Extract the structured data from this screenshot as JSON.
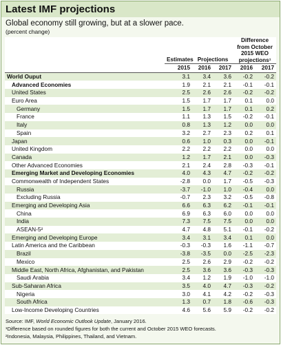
{
  "header": {
    "title": "Latest IMF projections",
    "subtitle": "Global economy still growing, but at a slower pace.",
    "note": "(percent change)"
  },
  "table": {
    "group_headers": [
      "Estimates",
      "Projections",
      "Difference from October 2015 WEO projections¹"
    ],
    "columns": [
      "2015",
      "2016",
      "2017",
      "2016",
      "2017"
    ],
    "rows": [
      [
        "World Ouput",
        "3.1",
        "3.4",
        "3.6",
        "-0.2",
        "-0.2"
      ],
      [
        "Advanced Economies",
        "1.9",
        "2.1",
        "2.1",
        "-0.1",
        "-0.1"
      ],
      [
        "United States",
        "2.5",
        "2.6",
        "2.6",
        "-0.2",
        "-0.2"
      ],
      [
        "Euro Area",
        "1.5",
        "1.7",
        "1.7",
        "0.1",
        "0.0"
      ],
      [
        "Germany",
        "1.5",
        "1.7",
        "1.7",
        "0.1",
        "0.2"
      ],
      [
        "France",
        "1.1",
        "1.3",
        "1.5",
        "-0.2",
        "-0.1"
      ],
      [
        "Italy",
        "0.8",
        "1.3",
        "1.2",
        "0.0",
        "0.0"
      ],
      [
        "Spain",
        "3.2",
        "2.7",
        "2.3",
        "0.2",
        "0.1"
      ],
      [
        "Japan",
        "0.6",
        "1.0",
        "0.3",
        "0.0",
        "-0.1"
      ],
      [
        "United Kingdom",
        "2.2",
        "2.2",
        "2.2",
        "0.0",
        "0.0"
      ],
      [
        "Canada",
        "1.2",
        "1.7",
        "2.1",
        "0.0",
        "-0.3"
      ],
      [
        "Other Advanced Economies",
        "2.1",
        "2.4",
        "2.8",
        "-0.3",
        "-0.1"
      ],
      [
        "Emerging Market and Developing Economies",
        "4.0",
        "4.3",
        "4.7",
        "-0.2",
        "-0.2"
      ],
      [
        "Commonwealth of Independent States",
        "-2.8",
        "0.0",
        "1.7",
        "-0.5",
        "-0.3"
      ],
      [
        "Russia",
        "-3.7",
        "-1.0",
        "1.0",
        "-0.4",
        "0.0"
      ],
      [
        "Excluding Russia",
        "-0.7",
        "2.3",
        "3.2",
        "-0.5",
        "-0.8"
      ],
      [
        "Emerging and Developing Asia",
        "6.6",
        "6.3",
        "6.2",
        "-0.1",
        "-0.1"
      ],
      [
        "China",
        "6.9",
        "6.3",
        "6.0",
        "0.0",
        "0.0"
      ],
      [
        "India",
        "7.3",
        "7.5",
        "7.5",
        "0.0",
        "0.0"
      ],
      [
        "ASEAN-5²",
        "4.7",
        "4.8",
        "5.1",
        "-0.1",
        "-0.2"
      ],
      [
        "Emerging and Developing Europe",
        "3.4",
        "3.1",
        "3.4",
        "0.1",
        "0.0"
      ],
      [
        "Latin America and the Caribbean",
        "-0.3",
        "-0.3",
        "1.6",
        "-1.1",
        "-0.7"
      ],
      [
        "Brazil",
        "-3.8",
        "-3.5",
        "0.0",
        "-2.5",
        "-2.3"
      ],
      [
        "Mexico",
        "2.5",
        "2.6",
        "2.9",
        "-0.2",
        "-0.2"
      ],
      [
        "Middle East, North Africa, Afghanistan, and Pakistan",
        "2.5",
        "3.6",
        "3.6",
        "-0.3",
        "-0.3"
      ],
      [
        "Saudi Arabia",
        "3.4",
        "1.2",
        "1.9",
        "-1.0",
        "-1.0"
      ],
      [
        "Sub-Saharan Africa",
        "3.5",
        "4.0",
        "4.7",
        "-0.3",
        "-0.2"
      ],
      [
        "Nigeria",
        "3.0",
        "4.1",
        "4.2",
        "-0.2",
        "-0.3"
      ],
      [
        "South Africa",
        "1.3",
        "0.7",
        "1.8",
        "-0.6",
        "-0.3"
      ],
      [
        "Low-Income Developing Countries",
        "4.6",
        "5.6",
        "5.9",
        "-0.2",
        "-0.2"
      ]
    ]
  },
  "footer": {
    "source": [
      "Source: IMF, ",
      "World Economic Outlook Update",
      ", January 2016."
    ],
    "notes": [
      "¹Difference based on rounded figures for both the current and October 2015 WEO forecasts.",
      "²Indonesia, Malaysia, Philippines, Thailand, and Vietnam."
    ]
  }
}
